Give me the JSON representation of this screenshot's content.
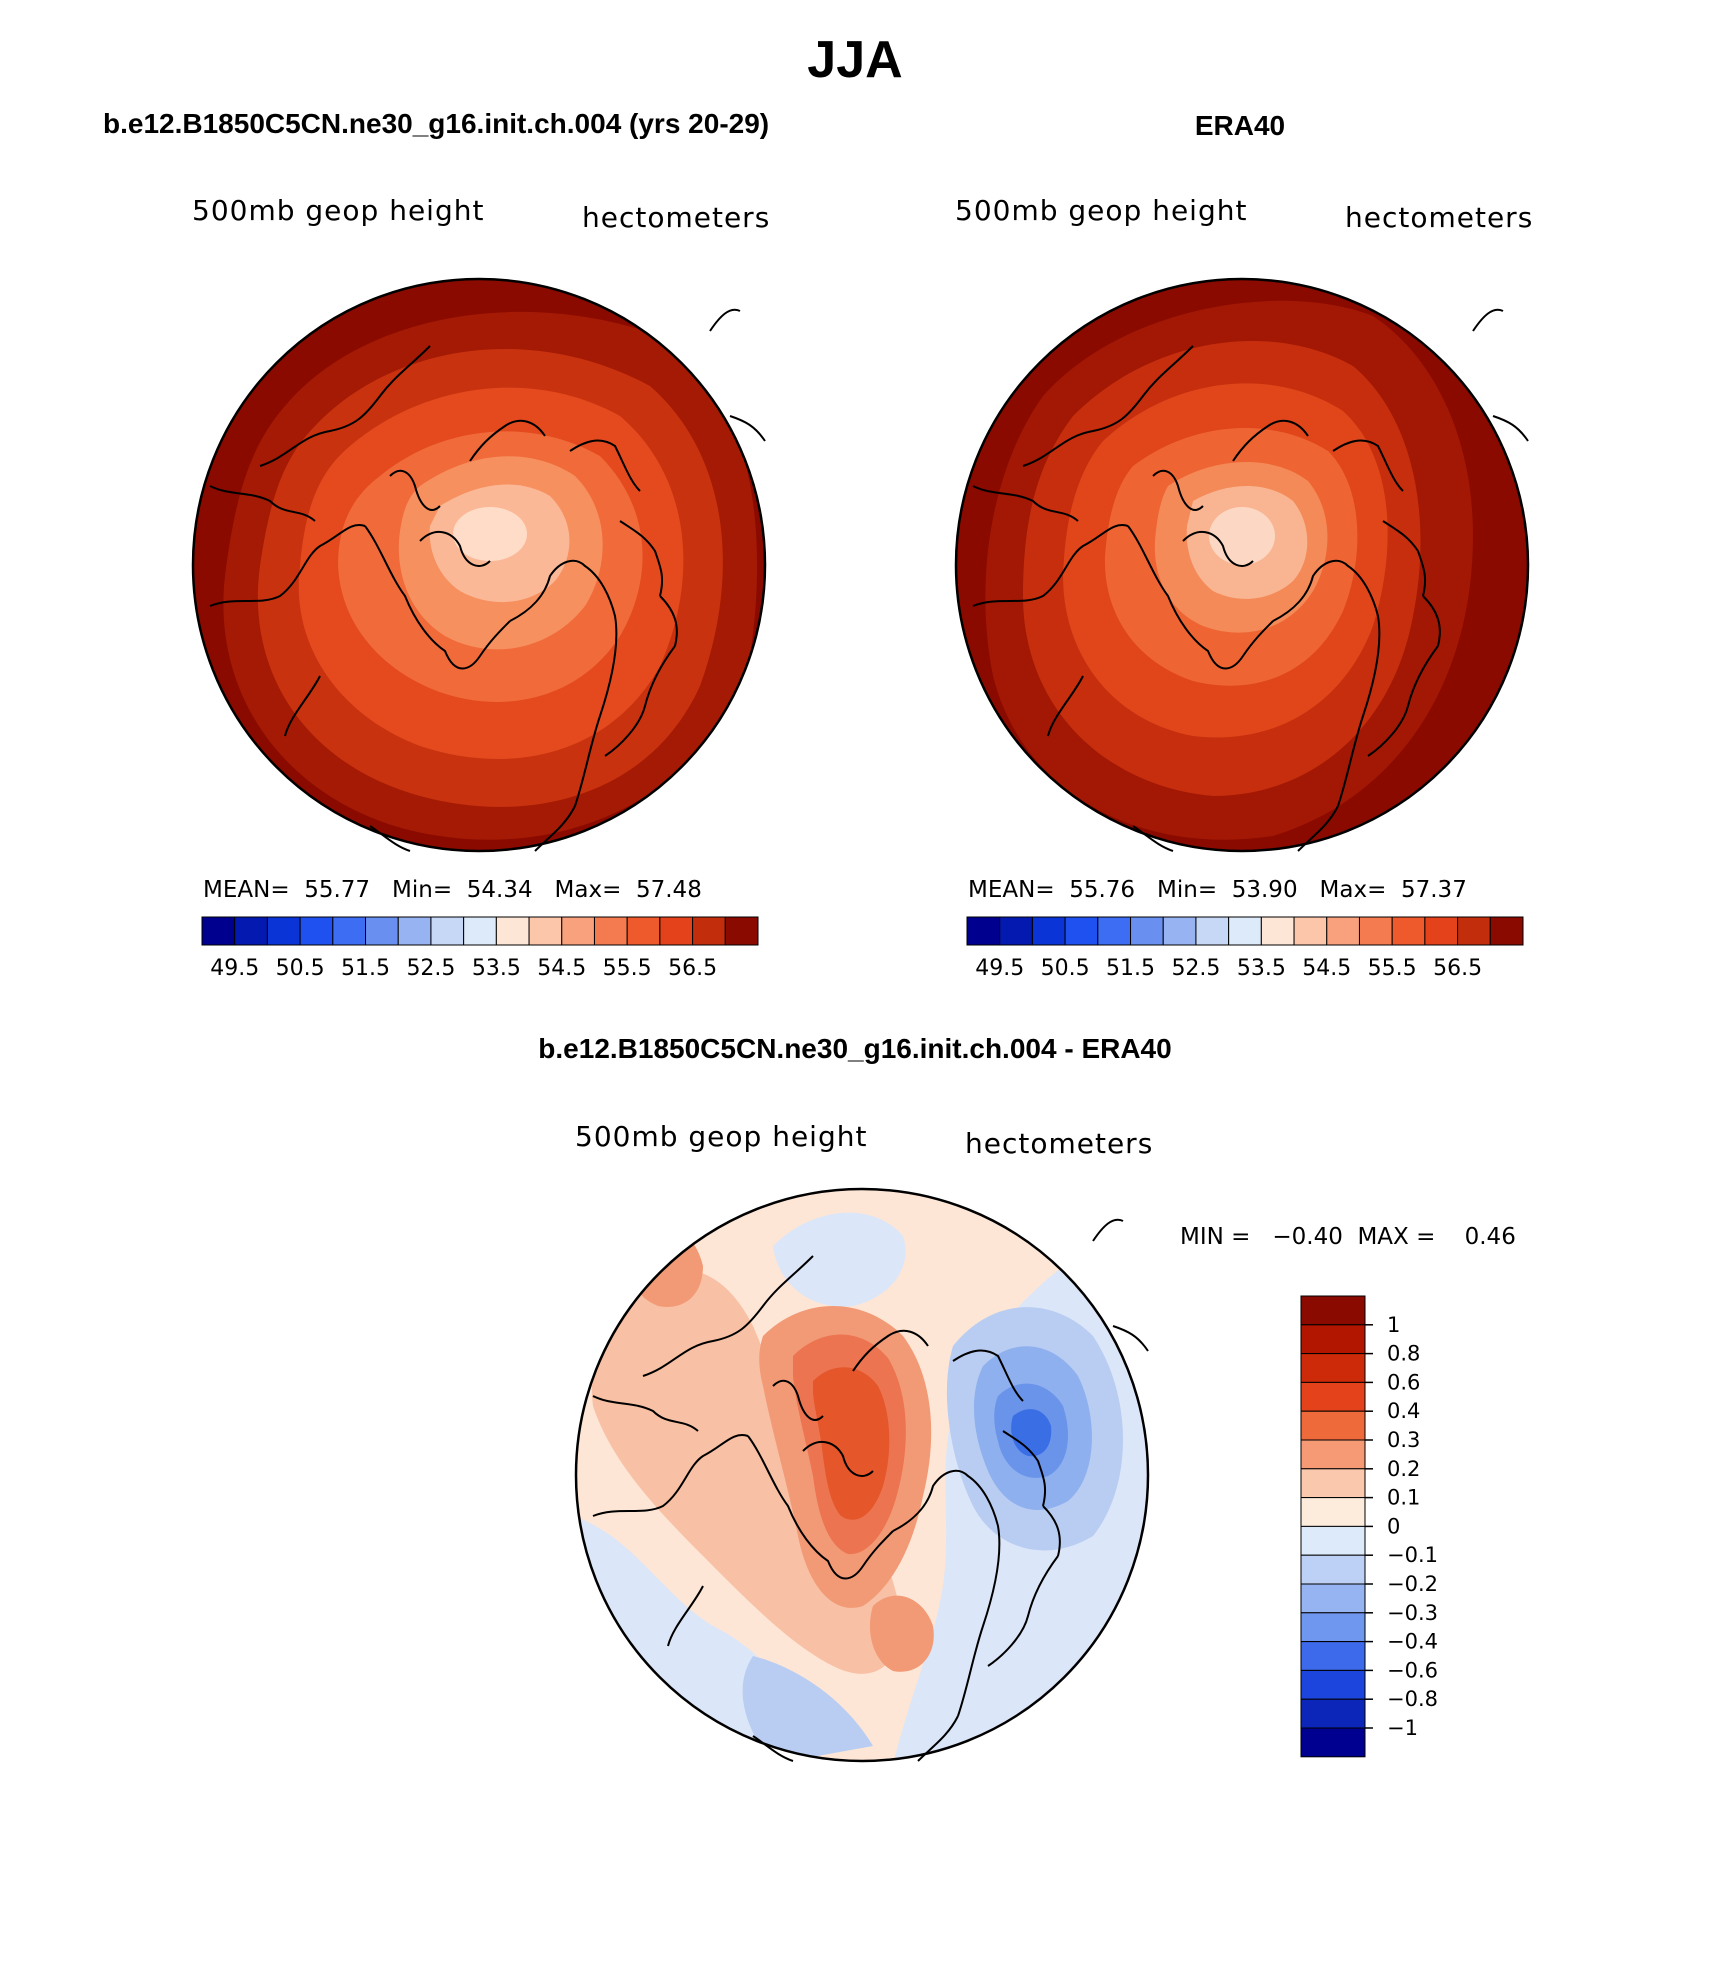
{
  "figure": {
    "title": "JJA"
  },
  "colors": {
    "coast": "#000000",
    "panel_a_levels": [
      "#ffdcc8",
      "#fbb896",
      "#f7905f",
      "#f06a3a",
      "#e44a1e",
      "#c8320f",
      "#a51a04",
      "#8a0a00"
    ],
    "panel_b_levels": [
      "#fcd8c4",
      "#f9b592",
      "#f48a58",
      "#ee6533",
      "#e0461a",
      "#c62e0d",
      "#a21804",
      "#8a0a00"
    ],
    "diff_pos": [
      "#fde6d6",
      "#f8c0a4",
      "#f29a76",
      "#ec7450",
      "#e5562a"
    ],
    "diff_neg": [
      "#dbe6f8",
      "#b9cdf2",
      "#8fb0ee",
      "#6a94ea",
      "#3a6ee5"
    ]
  },
  "chart_data": [
    {
      "type": "heatmap",
      "panel": "model",
      "title": "b.e12.B1850C5CN.ne30_g16.init.ch.004 (yrs 20-29)",
      "left_label": "500mb geop height",
      "right_label": "hectometers",
      "stats": {
        "mean_label": "MEAN=",
        "mean": "55.77",
        "min_label": "Min=",
        "min": "54.34",
        "max_label": "Max=",
        "max": "57.48"
      },
      "colorbar": {
        "colors": [
          "#00008f",
          "#0419b0",
          "#0a34d6",
          "#1f51f0",
          "#3d6df2",
          "#6990f0",
          "#98b3f1",
          "#c7d8f6",
          "#ddeafa",
          "#fde6d6",
          "#fcc6ab",
          "#f9a07c",
          "#f47a4f",
          "#ee5a2c",
          "#e3421a",
          "#c22d0c",
          "#8a0a00"
        ],
        "tick_labels": [
          "49.5",
          "50.5",
          "51.5",
          "52.5",
          "53.5",
          "54.5",
          "55.5",
          "56.5"
        ]
      }
    },
    {
      "type": "heatmap",
      "panel": "observations",
      "title": "ERA40",
      "left_label": "500mb geop height",
      "right_label": "hectometers",
      "stats": {
        "mean_label": "MEAN=",
        "mean": "55.76",
        "min_label": "Min=",
        "min": "53.90",
        "max_label": "Max=",
        "max": "57.37"
      },
      "colorbar": {
        "colors": [
          "#00008f",
          "#0419b0",
          "#0a34d6",
          "#1f51f0",
          "#3d6df2",
          "#6990f0",
          "#98b3f1",
          "#c7d8f6",
          "#ddeafa",
          "#fde6d6",
          "#fcc6ab",
          "#f9a07c",
          "#f47a4f",
          "#ee5a2c",
          "#e3421a",
          "#c22d0c",
          "#8a0a00"
        ],
        "tick_labels": [
          "49.5",
          "50.5",
          "51.5",
          "52.5",
          "53.5",
          "54.5",
          "55.5",
          "56.5"
        ]
      }
    },
    {
      "type": "heatmap",
      "panel": "difference",
      "title": "b.e12.B1850C5CN.ne30_g16.init.ch.004 - ERA40",
      "left_label": "500mb geop height",
      "right_label": "hectometers",
      "stats_text": "MIN =   −0.40  MAX =    0.46",
      "colorbar": {
        "colors": [
          "#8a0a00",
          "#b21500",
          "#cc2a08",
          "#e3421a",
          "#ef6a3a",
          "#f59a74",
          "#fac8ac",
          "#fdebdc",
          "#ddeafa",
          "#bcd1f5",
          "#95b4f1",
          "#6f97ef",
          "#3c6aeb",
          "#1b45dc",
          "#0c26ba",
          "#000090"
        ],
        "tick_labels": [
          "1",
          "0.8",
          "0.6",
          "0.4",
          "0.3",
          "0.2",
          "0.1",
          "0",
          "−0.1",
          "−0.2",
          "−0.3",
          "−0.4",
          "−0.6",
          "−0.8",
          "−1"
        ]
      }
    }
  ]
}
